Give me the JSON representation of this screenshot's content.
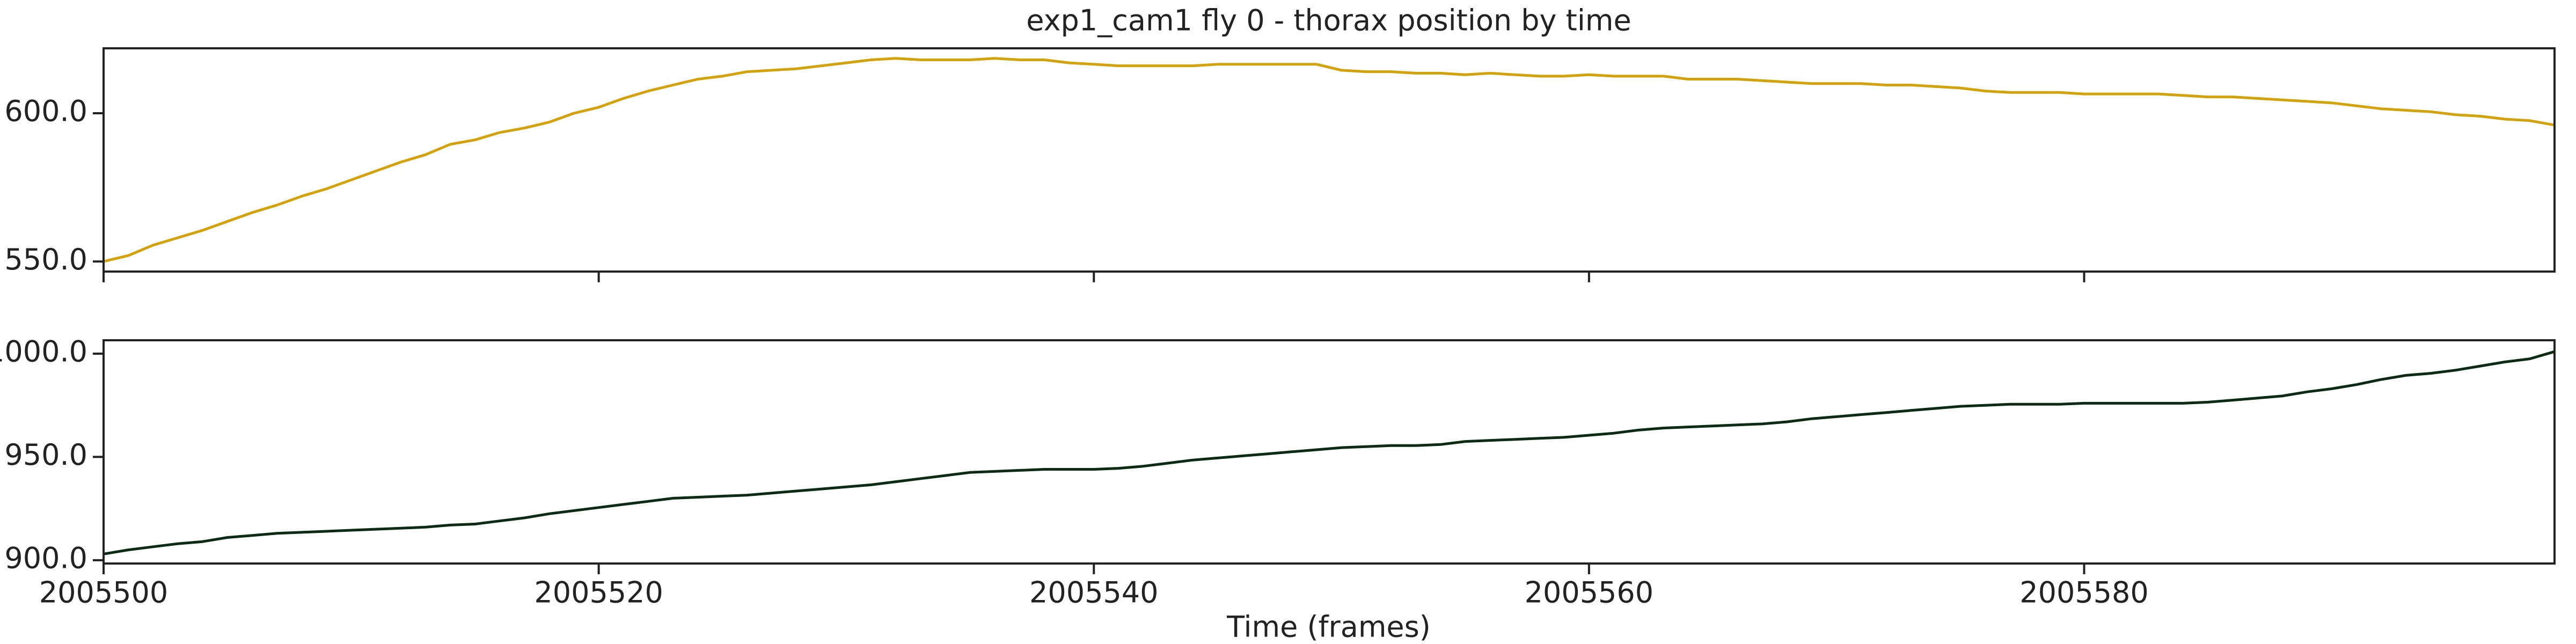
{
  "chart_data": [
    {
      "type": "line",
      "title": "exp1_cam1 fly 0 - thorax position by time",
      "color": "#d4a20a",
      "x": [
        2005500,
        2005501,
        2005502,
        2005503,
        2005504,
        2005505,
        2005506,
        2005507,
        2005508,
        2005509,
        2005510,
        2005511,
        2005512,
        2005513,
        2005514,
        2005515,
        2005516,
        2005517,
        2005518,
        2005519,
        2005520,
        2005521,
        2005522,
        2005523,
        2005524,
        2005525,
        2005526,
        2005527,
        2005528,
        2005529,
        2005530,
        2005531,
        2005532,
        2005533,
        2005534,
        2005535,
        2005536,
        2005537,
        2005538,
        2005539,
        2005540,
        2005541,
        2005542,
        2005543,
        2005544,
        2005545,
        2005546,
        2005547,
        2005548,
        2005549,
        2005550,
        2005551,
        2005552,
        2005553,
        2005554,
        2005555,
        2005556,
        2005557,
        2005558,
        2005559,
        2005560,
        2005561,
        2005562,
        2005563,
        2005564,
        2005565,
        2005566,
        2005567,
        2005568,
        2005569,
        2005570,
        2005571,
        2005572,
        2005573,
        2005574,
        2005575,
        2005576,
        2005577,
        2005578,
        2005579,
        2005580,
        2005581,
        2005582,
        2005583,
        2005584,
        2005585,
        2005586,
        2005587,
        2005588,
        2005589,
        2005590,
        2005591,
        2005592,
        2005593,
        2005594,
        2005595,
        2005596,
        2005597,
        2005598,
        2005599
      ],
      "values": [
        550,
        552,
        555.5,
        558,
        560.5,
        563.5,
        566.5,
        569,
        572,
        574.5,
        577.5,
        580.5,
        583.5,
        586,
        589.5,
        591,
        593.5,
        595,
        597,
        600,
        602,
        605,
        607.5,
        609.5,
        611.5,
        612.5,
        614,
        614.5,
        615,
        616,
        617,
        618,
        618.5,
        618,
        618,
        618,
        618.5,
        618,
        618,
        617,
        616.5,
        616,
        616,
        616,
        616,
        616.5,
        616.5,
        616.5,
        616.5,
        616.5,
        614.5,
        614,
        614,
        613.5,
        613.5,
        613,
        613.5,
        613,
        612.5,
        612.5,
        613,
        612.5,
        612.5,
        612.5,
        611.5,
        611.5,
        611.5,
        611,
        610.5,
        610,
        610,
        610,
        609.5,
        609.5,
        609,
        608.5,
        607.5,
        607,
        607,
        607,
        606.5,
        606.5,
        606.5,
        606.5,
        606,
        605.5,
        605.5,
        605,
        604.5,
        604,
        603.5,
        602.5,
        601.5,
        601,
        600.5,
        599.5,
        599,
        598,
        597.5,
        596
      ],
      "xlim": [
        2005500,
        2005599
      ],
      "xticks": [
        2005500,
        2005520,
        2005540,
        2005560,
        2005580
      ],
      "ylim": [
        546.6,
        621.9
      ],
      "yticks": [
        {
          "value": 550,
          "label": "550.0"
        },
        {
          "value": 600,
          "label": "600.0"
        }
      ]
    },
    {
      "type": "line",
      "xlabel": "Time (frames)",
      "color": "#0d2a14",
      "x": [
        2005500,
        2005501,
        2005502,
        2005503,
        2005504,
        2005505,
        2005506,
        2005507,
        2005508,
        2005509,
        2005510,
        2005511,
        2005512,
        2005513,
        2005514,
        2005515,
        2005516,
        2005517,
        2005518,
        2005519,
        2005520,
        2005521,
        2005522,
        2005523,
        2005524,
        2005525,
        2005526,
        2005527,
        2005528,
        2005529,
        2005530,
        2005531,
        2005532,
        2005533,
        2005534,
        2005535,
        2005536,
        2005537,
        2005538,
        2005539,
        2005540,
        2005541,
        2005542,
        2005543,
        2005544,
        2005545,
        2005546,
        2005547,
        2005548,
        2005549,
        2005550,
        2005551,
        2005552,
        2005553,
        2005554,
        2005555,
        2005556,
        2005557,
        2005558,
        2005559,
        2005560,
        2005561,
        2005562,
        2005563,
        2005564,
        2005565,
        2005566,
        2005567,
        2005568,
        2005569,
        2005570,
        2005571,
        2005572,
        2005573,
        2005574,
        2005575,
        2005576,
        2005577,
        2005578,
        2005579,
        2005580,
        2005581,
        2005582,
        2005583,
        2005584,
        2005585,
        2005586,
        2005587,
        2005588,
        2005589,
        2005590,
        2005591,
        2005592,
        2005593,
        2005594,
        2005595,
        2005596,
        2005597,
        2005598,
        2005599
      ],
      "values": [
        903,
        905,
        906.5,
        908,
        909,
        911,
        912,
        913,
        913.5,
        914,
        914.5,
        915,
        915.5,
        916,
        917,
        917.5,
        919,
        920.5,
        922.5,
        924,
        925.5,
        927,
        928.5,
        930,
        930.5,
        931,
        931.5,
        932.5,
        933.5,
        934.5,
        935.5,
        936.5,
        938,
        939.5,
        941,
        942.5,
        943,
        943.5,
        944,
        944,
        944,
        944.5,
        945.5,
        947,
        948.5,
        949.5,
        950.5,
        951.5,
        952.5,
        953.5,
        954.5,
        955,
        955.5,
        955.5,
        956,
        957.5,
        958,
        958.5,
        959,
        959.5,
        960.5,
        961.5,
        963,
        964,
        964.5,
        965,
        965.5,
        966,
        967,
        968.5,
        969.5,
        970.5,
        971.5,
        972.5,
        973.5,
        974.5,
        975,
        975.5,
        975.5,
        975.5,
        976,
        976,
        976,
        976,
        976,
        976.5,
        977.5,
        978.5,
        979.5,
        981.5,
        983,
        985,
        987.5,
        989.5,
        990.5,
        992,
        994,
        996,
        997.5,
        1001
      ],
      "xlim": [
        2005500,
        2005599
      ],
      "xticks": [
        2005500,
        2005520,
        2005540,
        2005560,
        2005580
      ],
      "ylim": [
        898.4,
        1006.5
      ],
      "yticks": [
        {
          "value": 900,
          "label": "900.0"
        },
        {
          "value": 950,
          "label": "950.0"
        },
        {
          "value": 1000,
          "label": "1000.0"
        }
      ]
    }
  ]
}
